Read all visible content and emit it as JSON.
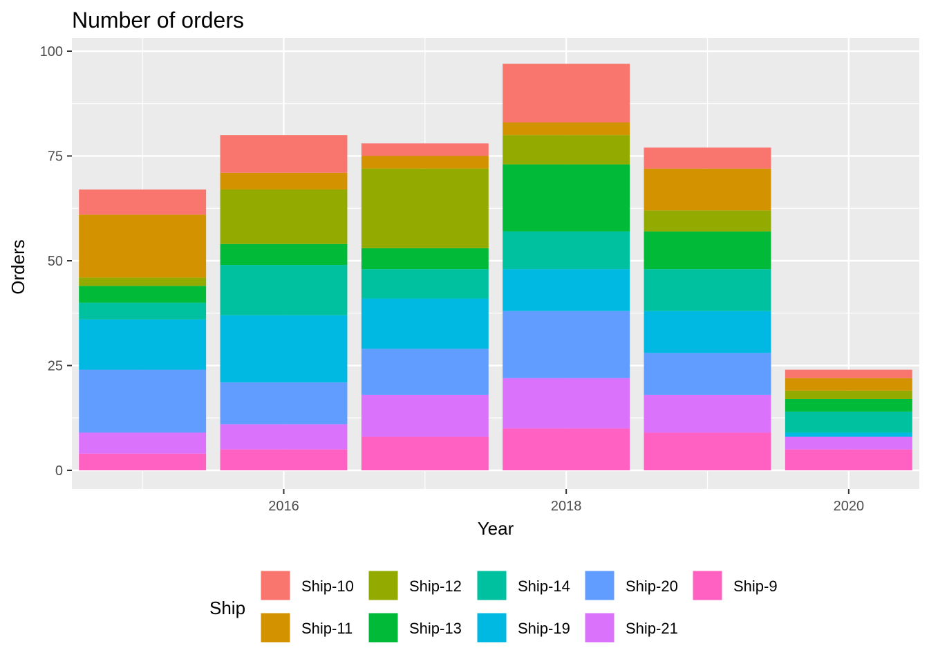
{
  "chart_data": {
    "type": "bar",
    "stacked": true,
    "title": "Number of orders",
    "xlabel": "Year",
    "ylabel": "Orders",
    "x": [
      2015,
      2016,
      2017,
      2018,
      2019,
      2020
    ],
    "x_ticks": [
      2016,
      2018,
      2020
    ],
    "xlim": [
      2014.5,
      2020.5
    ],
    "y_ticks": [
      0,
      25,
      50,
      75,
      100
    ],
    "ylim": [
      0,
      100
    ],
    "grid": true,
    "legend": {
      "title": "Ship",
      "position": "bottom"
    },
    "series": [
      {
        "name": "Ship-9",
        "color": "#FF61C3",
        "values": [
          4,
          5,
          8,
          10,
          9,
          5
        ]
      },
      {
        "name": "Ship-21",
        "color": "#DB72FB",
        "values": [
          5,
          6,
          10,
          12,
          9,
          3
        ]
      },
      {
        "name": "Ship-20",
        "color": "#619CFF",
        "values": [
          15,
          10,
          11,
          16,
          10,
          0
        ]
      },
      {
        "name": "Ship-19",
        "color": "#00B9E3",
        "values": [
          12,
          16,
          12,
          10,
          10,
          1
        ]
      },
      {
        "name": "Ship-14",
        "color": "#00C19F",
        "values": [
          4,
          12,
          7,
          9,
          10,
          5
        ]
      },
      {
        "name": "Ship-13",
        "color": "#00BA38",
        "values": [
          4,
          5,
          5,
          16,
          9,
          3
        ]
      },
      {
        "name": "Ship-12",
        "color": "#93AA00",
        "values": [
          2,
          13,
          19,
          7,
          5,
          2
        ]
      },
      {
        "name": "Ship-11",
        "color": "#D39200",
        "values": [
          15,
          4,
          3,
          3,
          10,
          3
        ]
      },
      {
        "name": "Ship-10",
        "color": "#F8766D",
        "values": [
          6,
          9,
          3,
          14,
          5,
          2
        ]
      }
    ],
    "legend_order": [
      "Ship-10",
      "Ship-11",
      "Ship-12",
      "Ship-13",
      "Ship-14",
      "Ship-19",
      "Ship-20",
      "Ship-21",
      "Ship-9"
    ]
  }
}
